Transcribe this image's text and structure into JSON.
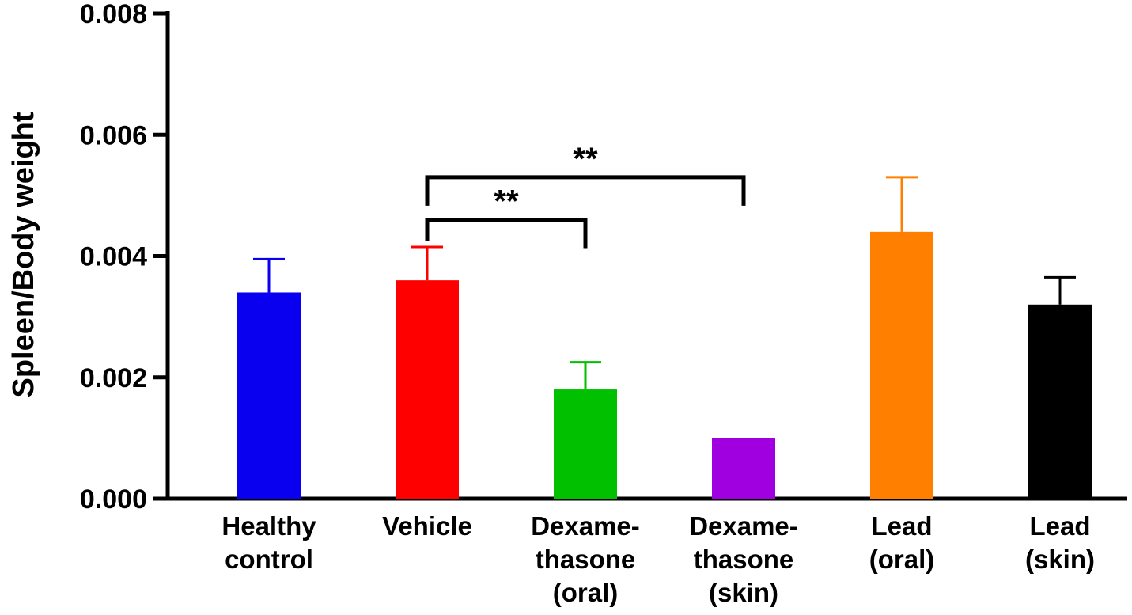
{
  "chart_data": {
    "type": "bar",
    "title": "",
    "xlabel": "",
    "ylabel": "Spleen/Body weight",
    "ylim": [
      0,
      0.008
    ],
    "yticks": [
      "0.000",
      "0.002",
      "0.004",
      "0.006",
      "0.008"
    ],
    "grid": false,
    "legend": "none",
    "categories": [
      [
        "Healthy",
        "control"
      ],
      [
        "Vehicle"
      ],
      [
        "Dexame-",
        "thasone",
        "(oral)"
      ],
      [
        "Dexame-",
        "thasone",
        "(skin)"
      ],
      [
        "Lead",
        "(oral)"
      ],
      [
        "Lead",
        "(skin)"
      ]
    ],
    "values": [
      0.0034,
      0.0036,
      0.0018,
      0.001,
      0.0044,
      0.0032
    ],
    "errors": [
      0.00055,
      0.00055,
      0.00045,
      0,
      0.0009,
      0.00045
    ],
    "colors": [
      "#0a00f0",
      "#ff0000",
      "#00c000",
      "#a000e0",
      "#ff8000",
      "#000000"
    ],
    "significance": [
      {
        "from": 1,
        "to": 2,
        "label": "**",
        "level": 0.0046
      },
      {
        "from": 1,
        "to": 3,
        "label": "**",
        "level": 0.0053
      }
    ]
  }
}
